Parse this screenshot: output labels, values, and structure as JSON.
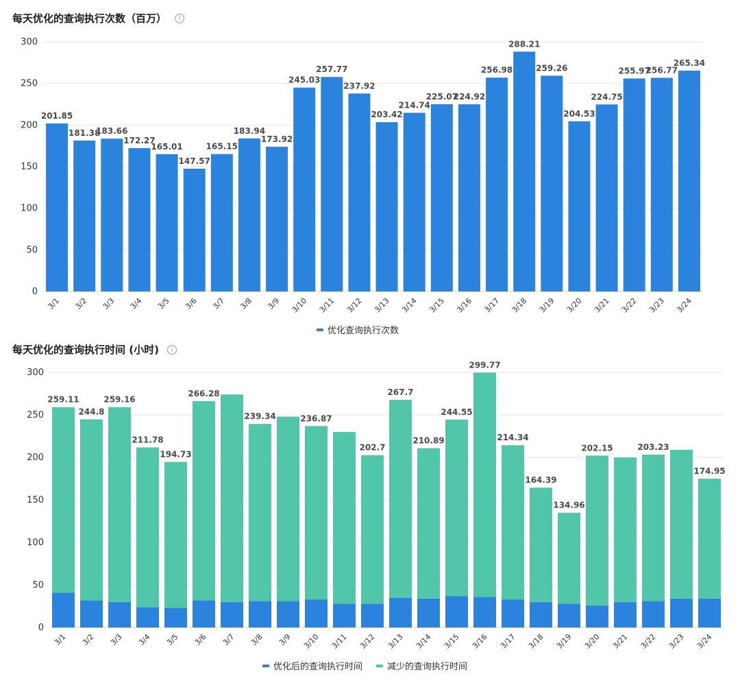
{
  "colors": {
    "blue": "#2c83dd",
    "green": "#52c6a8"
  },
  "chart_data": [
    {
      "type": "bar",
      "title": "每天优化的查询执行次数（百万）",
      "info_icon": "i",
      "categories": [
        "3/1",
        "3/2",
        "3/3",
        "3/4",
        "3/5",
        "3/6",
        "3/7",
        "3/8",
        "3/9",
        "3/10",
        "3/11",
        "3/12",
        "3/13",
        "3/14",
        "3/15",
        "3/16",
        "3/17",
        "3/18",
        "3/19",
        "3/20",
        "3/21",
        "3/22",
        "3/23",
        "3/24"
      ],
      "series": [
        {
          "name": "优化查询执行次数",
          "color": "#2c83dd",
          "values": [
            201.85,
            181.38,
            183.66,
            172.27,
            165.01,
            147.57,
            165.15,
            183.94,
            173.92,
            245.03,
            257.77,
            237.92,
            203.42,
            214.74,
            225.07,
            224.92,
            256.98,
            288.21,
            259.26,
            204.53,
            224.75,
            255.97,
            256.77,
            265.34
          ],
          "labels": [
            "201.85",
            "181.38",
            "183.66",
            "172.27",
            "165.01",
            "147.57",
            "165.15",
            "183.94",
            "173.92",
            "245.03",
            "257.77",
            "237.92",
            "203.42",
            "214.74",
            "225.07",
            "224.92",
            "256.98",
            "288.21",
            "259.26",
            "204.53",
            "224.75",
            "255.97",
            "256.77",
            "265.34"
          ]
        }
      ],
      "ylim": [
        0,
        300
      ],
      "yticks": [
        0,
        50,
        100,
        150,
        200,
        250,
        300
      ],
      "legend_position": "bottom-center"
    },
    {
      "type": "bar",
      "stacked": true,
      "title": "每天优化的查询执行时间 (小时)",
      "info_icon": "i",
      "categories": [
        "3/1",
        "3/2",
        "3/3",
        "3/4",
        "3/5",
        "3/6",
        "3/7",
        "3/8",
        "3/9",
        "3/10",
        "3/11",
        "3/12",
        "3/13",
        "3/14",
        "3/15",
        "3/16",
        "3/17",
        "3/18",
        "3/19",
        "3/20",
        "3/21",
        "3/22",
        "3/23",
        "3/24"
      ],
      "series": [
        {
          "name": "优化后的查询执行时间",
          "color": "#2c83dd",
          "values": [
            41,
            32,
            30,
            24,
            23,
            32,
            30,
            31,
            31,
            33,
            28,
            28,
            35,
            34,
            37,
            36,
            33,
            30,
            28,
            26,
            30,
            31,
            34,
            34
          ]
        },
        {
          "name": "减少的查询执行时间",
          "color": "#52c6a8",
          "values": [
            218.11,
            212.8,
            229.16,
            187.78,
            171.73,
            234.28,
            244.0,
            208.34,
            217.0,
            203.87,
            202.0,
            174.7,
            232.7,
            176.89,
            207.55,
            263.77,
            181.34,
            134.39,
            106.96,
            176.15,
            170.0,
            172.23,
            175.0,
            140.95
          ]
        }
      ],
      "totals_labels": [
        "259.11",
        "244.8",
        "259.16",
        "211.78",
        "194.73",
        "266.28",
        "",
        "239.34",
        "",
        "236.87",
        "",
        "202.7",
        "267.7",
        "210.89",
        "244.55",
        "299.77",
        "214.34",
        "164.39",
        "134.96",
        "202.15",
        "",
        "203.23",
        "",
        "174.95"
      ],
      "ylim": [
        0,
        300
      ],
      "yticks": [
        0,
        50,
        100,
        150,
        200,
        250,
        300
      ],
      "legend_position": "bottom-center"
    }
  ]
}
